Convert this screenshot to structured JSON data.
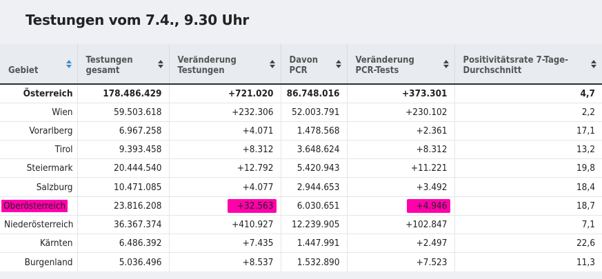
{
  "title": "Testungen vom 7.4., 9.30 Uhr",
  "colors": {
    "header_bg": "#e8ebef",
    "highlight": "#ff00aa",
    "sort_active": "#3f8bd1"
  },
  "columns": [
    {
      "label": "Gebiet",
      "sort_icon": "sort-active-icon"
    },
    {
      "label": "Testungen gesamt",
      "sort_icon": "sort-icon"
    },
    {
      "label": "Veränderung Testungen",
      "sort_icon": "sort-icon"
    },
    {
      "label": "Davon PCR",
      "sort_icon": "sort-icon"
    },
    {
      "label": "Veränderung PCR-Tests",
      "sort_icon": "sort-icon"
    },
    {
      "label": "Positivitätsrate 7-Tage-Durchschnitt",
      "sort_icon": "sort-icon"
    }
  ],
  "rows": [
    {
      "gebiet": "Österreich",
      "gesamt": "178.486.429",
      "veraenderung": "+721.020",
      "pcr": "86.748.016",
      "veraenderung_pcr": "+373.301",
      "rate": "4,7"
    },
    {
      "gebiet": "Wien",
      "gesamt": "59.503.618",
      "veraenderung": "+232.306",
      "pcr": "52.003.791",
      "veraenderung_pcr": "+230.102",
      "rate": "2,2"
    },
    {
      "gebiet": "Vorarlberg",
      "gesamt": "6.967.258",
      "veraenderung": "+4.071",
      "pcr": "1.478.568",
      "veraenderung_pcr": "+2.361",
      "rate": "17,1"
    },
    {
      "gebiet": "Tirol",
      "gesamt": "9.393.458",
      "veraenderung": "+8.312",
      "pcr": "3.648.624",
      "veraenderung_pcr": "+8.312",
      "rate": "13,2"
    },
    {
      "gebiet": "Steiermark",
      "gesamt": "20.444.540",
      "veraenderung": "+12.792",
      "pcr": "5.420.943",
      "veraenderung_pcr": "+11.221",
      "rate": "19,8"
    },
    {
      "gebiet": "Salzburg",
      "gesamt": "10.471.085",
      "veraenderung": "+4.077",
      "pcr": "2.944.653",
      "veraenderung_pcr": "+3.492",
      "rate": "18,4"
    },
    {
      "gebiet": "Oberösterreich",
      "gesamt": "23.816.208",
      "veraenderung": "+32.563",
      "pcr": "6.030.651",
      "veraenderung_pcr": "+4.946",
      "rate": "18,7"
    },
    {
      "gebiet": "Niederösterreich",
      "gesamt": "36.367.374",
      "veraenderung": "+410.927",
      "pcr": "12.239.905",
      "veraenderung_pcr": "+102.847",
      "rate": "7,1"
    },
    {
      "gebiet": "Kärnten",
      "gesamt": "6.486.392",
      "veraenderung": "+7.435",
      "pcr": "1.447.991",
      "veraenderung_pcr": "+2.497",
      "rate": "22,6"
    },
    {
      "gebiet": "Burgenland",
      "gesamt": "5.036.496",
      "veraenderung": "+8.537",
      "pcr": "1.532.890",
      "veraenderung_pcr": "+7.523",
      "rate": "11,3"
    }
  ]
}
